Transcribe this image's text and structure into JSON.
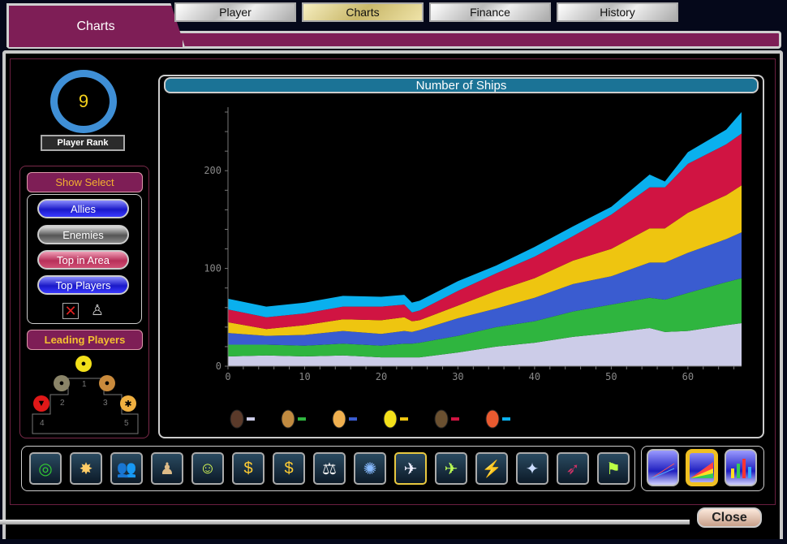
{
  "header": {
    "title": "Charts",
    "tabs": [
      {
        "label": "Player",
        "active": false
      },
      {
        "label": "Charts",
        "active": true
      },
      {
        "label": "Finance",
        "active": false
      },
      {
        "label": "History",
        "active": false
      }
    ]
  },
  "rank": {
    "value": "9",
    "label": "Player Rank"
  },
  "show_select": {
    "title": "Show Select",
    "buttons": [
      "Allies",
      "Enemies",
      "Top in Area",
      "Top Players"
    ],
    "icons": [
      "clear-x-icon",
      "player-silhouette-icon"
    ]
  },
  "leading": {
    "title": "Leading Players",
    "places": [
      "1",
      "2",
      "3",
      "4",
      "5"
    ],
    "medal_colors": [
      "#f3e01a",
      "#8a8468",
      "#c98a3c",
      "#e01818",
      "#f0b040"
    ]
  },
  "chart_data": {
    "type": "area",
    "stacked": true,
    "title": "Number of Ships",
    "xlabel": "",
    "ylabel": "",
    "xlim": [
      0,
      67
    ],
    "ylim": [
      0,
      260
    ],
    "xticks": [
      0,
      10,
      20,
      30,
      40,
      50,
      60
    ],
    "yticks": [
      0,
      100,
      200
    ],
    "grid": false,
    "legend_placement": "bottom",
    "x": [
      0,
      5,
      10,
      15,
      20,
      23,
      24,
      25,
      30,
      35,
      40,
      45,
      50,
      55,
      57,
      60,
      65,
      67
    ],
    "series": [
      {
        "color": "#cccce8",
        "values": [
          10,
          11,
          10,
          11,
          9,
          9,
          9,
          9,
          14,
          20,
          24,
          30,
          34,
          39,
          35,
          36,
          42,
          44
        ]
      },
      {
        "color": "#2fb53f",
        "values": [
          12,
          11,
          11,
          12,
          12,
          14,
          14,
          15,
          17,
          20,
          22,
          26,
          29,
          31,
          33,
          39,
          44,
          46
        ]
      },
      {
        "color": "#3a5cd0",
        "values": [
          12,
          9,
          11,
          13,
          12,
          13,
          12,
          13,
          18,
          19,
          24,
          28,
          29,
          36,
          38,
          41,
          44,
          47
        ]
      },
      {
        "color": "#eec510",
        "values": [
          11,
          7,
          10,
          12,
          14,
          14,
          11,
          10,
          13,
          18,
          20,
          24,
          28,
          35,
          35,
          41,
          45,
          48
        ]
      },
      {
        "color": "#d01442",
        "values": [
          13,
          12,
          12,
          13,
          14,
          13,
          9,
          10,
          15,
          18,
          22,
          25,
          35,
          42,
          42,
          50,
          52,
          53
        ]
      },
      {
        "color": "#0ab0ee",
        "values": [
          11,
          11,
          11,
          11,
          10,
          10,
          10,
          10,
          10,
          8,
          10,
          10,
          8,
          13,
          6,
          12,
          15,
          22
        ]
      }
    ],
    "legend_icons": [
      "brown-faction-icon",
      "tan-faction-icon",
      "orange-faction-icon",
      "yellow-faction-icon",
      "leaf-faction-icon",
      "red-orange-faction-icon"
    ]
  },
  "toolbar": {
    "icons": [
      "target-icon",
      "explosion-icon",
      "people-icon",
      "army-icon",
      "smiley-icon",
      "add-money-icon",
      "remove-money-icon",
      "scales-icon",
      "portal-icon",
      "ship-icon",
      "add-ship-icon",
      "destroyed-ship-icon",
      "mech-icon",
      "fighter-icon",
      "flag-icon"
    ],
    "selected": 9,
    "glyphs": [
      "◎",
      "✸",
      "👥",
      "♟",
      "☺",
      "$",
      "$",
      "⚖",
      "✺",
      "✈",
      "✈",
      "⚡",
      "✦",
      "➶",
      "⚑"
    ]
  },
  "chart_types": {
    "icons": [
      "line-chart-icon",
      "area-chart-icon",
      "bar-chart-icon"
    ],
    "selected": 1
  },
  "close_label": "Close"
}
